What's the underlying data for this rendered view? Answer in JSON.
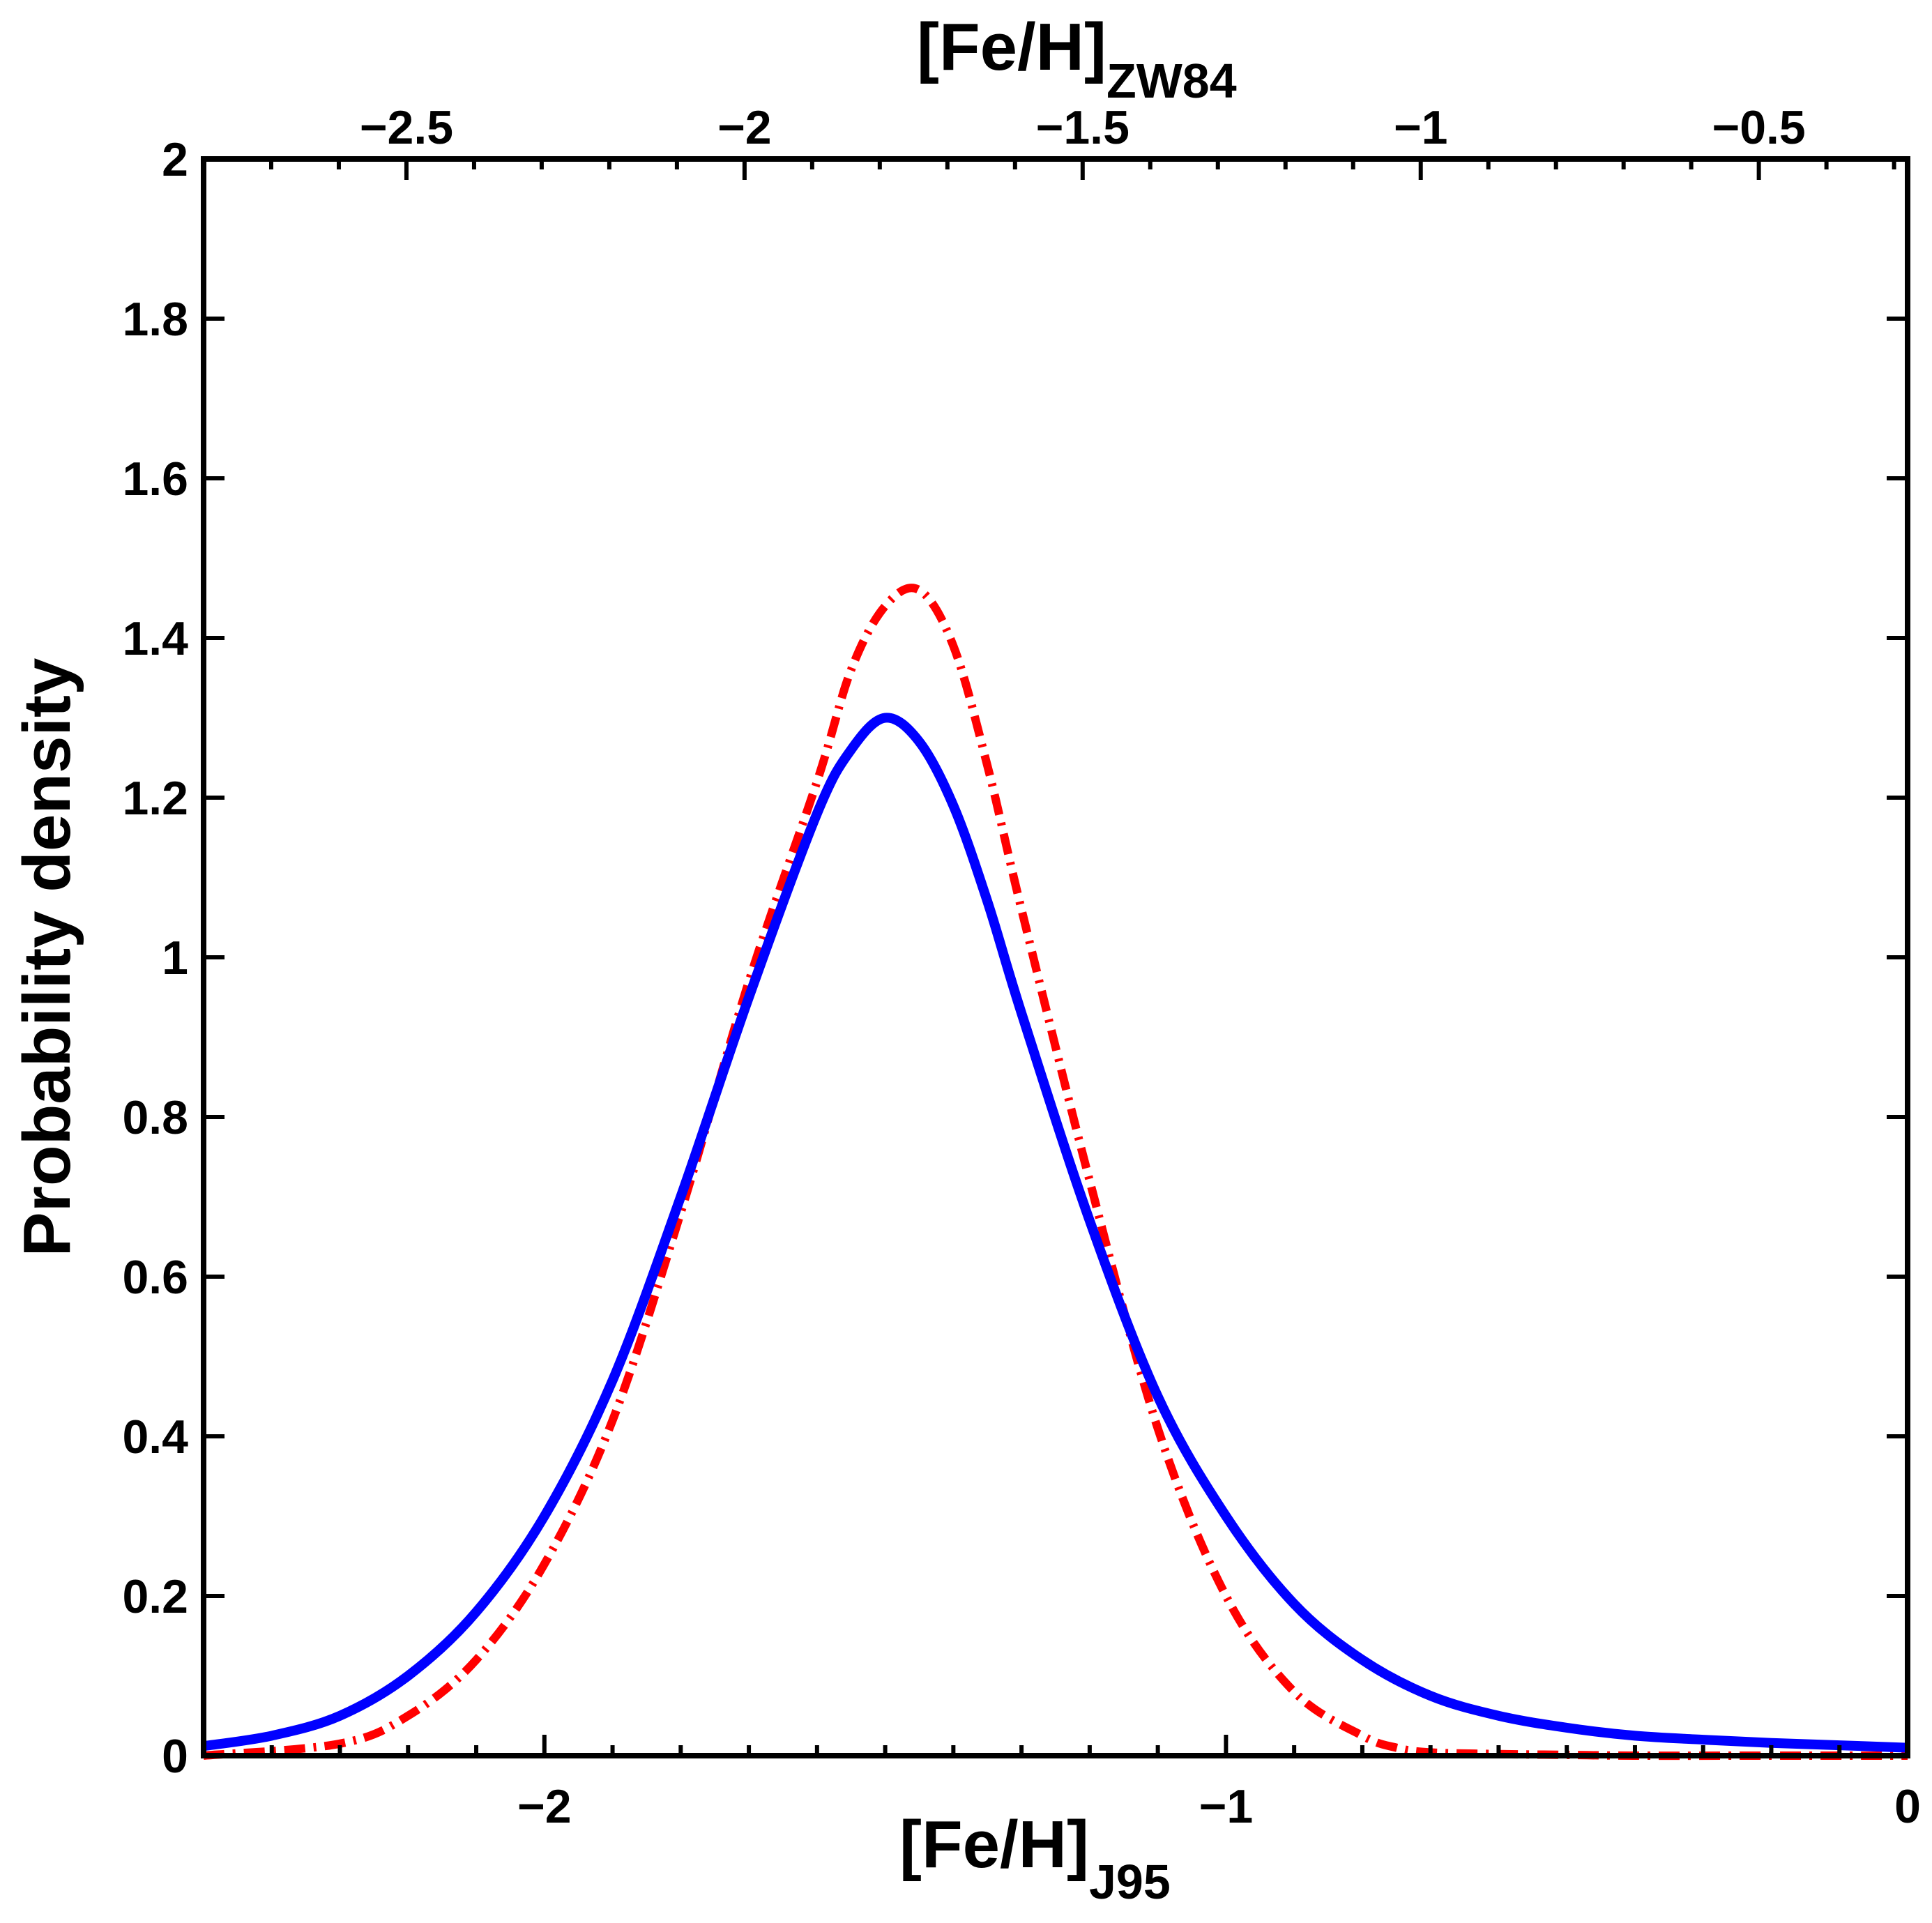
{
  "chart_data": {
    "type": "line",
    "xlabel": "[Fe/H]",
    "xlabel_sub": "J95",
    "x2label": "[Fe/H]",
    "x2label_sub": "ZW84",
    "ylabel": "Probability density",
    "xlim": [
      -2.5,
      0
    ],
    "ylim": [
      0,
      2
    ],
    "x2lim": [
      -2.8,
      -0.28
    ],
    "xticks": [
      -2,
      -1,
      0
    ],
    "xtick_labels": [
      "−2",
      "−1",
      "0"
    ],
    "x2ticks": [
      -2.5,
      -2,
      -1.5,
      -1,
      -0.5
    ],
    "x2tick_labels": [
      "−2.5",
      "−2",
      "−1.5",
      "−1",
      "−0.5"
    ],
    "yticks": [
      0,
      0.2,
      0.4,
      0.6,
      0.8,
      1,
      1.2,
      1.4,
      1.6,
      1.8,
      2
    ],
    "ytick_labels": [
      "0",
      "0.2",
      "0.4",
      "0.6",
      "0.8",
      "1",
      "1.2",
      "1.4",
      "1.6",
      "1.8",
      "2"
    ],
    "grid": false,
    "series": [
      {
        "name": "solid",
        "color": "#0000ff",
        "style": "solid",
        "x": [
          -2.5,
          -2.4,
          -2.3,
          -2.2,
          -2.1,
          -2.0,
          -1.9,
          -1.8,
          -1.7,
          -1.6,
          -1.55,
          -1.5,
          -1.45,
          -1.4,
          -1.35,
          -1.3,
          -1.2,
          -1.1,
          -1.0,
          -0.9,
          -0.8,
          -0.7,
          -0.6,
          -0.5,
          -0.4,
          -0.3,
          -0.2,
          -0.1,
          0.0
        ],
        "y": [
          0.012,
          0.025,
          0.05,
          0.1,
          0.18,
          0.3,
          0.47,
          0.7,
          0.95,
          1.18,
          1.26,
          1.3,
          1.27,
          1.19,
          1.07,
          0.93,
          0.67,
          0.45,
          0.3,
          0.19,
          0.12,
          0.075,
          0.05,
          0.035,
          0.025,
          0.02,
          0.016,
          0.013,
          0.01
        ]
      },
      {
        "name": "dash-dot",
        "color": "#ff0000",
        "style": "dashdot",
        "x": [
          -2.5,
          -2.3,
          -2.2,
          -2.1,
          -2.0,
          -1.9,
          -1.8,
          -1.7,
          -1.6,
          -1.55,
          -1.5,
          -1.45,
          -1.4,
          -1.35,
          -1.3,
          -1.2,
          -1.1,
          -1.0,
          -0.9,
          -0.8,
          -0.75,
          -0.7,
          -0.6,
          -0.5,
          -0.4,
          -0.2,
          0.0
        ],
        "y": [
          0.0,
          0.015,
          0.05,
          0.12,
          0.24,
          0.42,
          0.68,
          0.97,
          1.22,
          1.36,
          1.44,
          1.46,
          1.39,
          1.24,
          1.06,
          0.72,
          0.41,
          0.2,
          0.08,
          0.025,
          0.01,
          0.004,
          0.002,
          0.001,
          0.0,
          0.0,
          0.0
        ]
      }
    ]
  }
}
